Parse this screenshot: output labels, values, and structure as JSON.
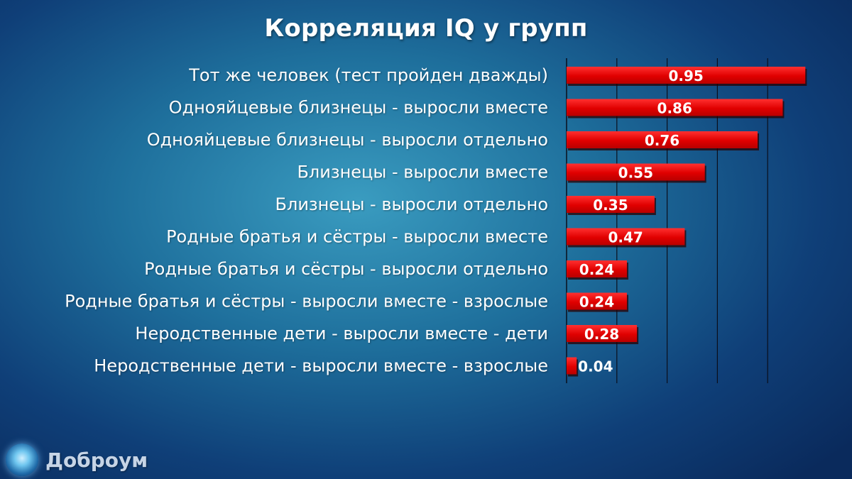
{
  "chart_data": {
    "type": "bar",
    "orientation": "horizontal",
    "title": "Корреляция IQ у групп",
    "categories": [
      "Тот же человек (тест пройден дважды)",
      "Однояйцевые близнецы - выросли вместе",
      "Однояйцевые близнецы - выросли отдельно",
      "Близнецы - выросли вместе",
      "Близнецы - выросли отдельно",
      "Родные братья и сёстры - выросли вместе",
      "Родные братья и сёстры - выросли отдельно",
      "Родные братья и сёстры - выросли вместе - взрослые",
      "Неродственные дети - выросли вместе - дети",
      "Неродственные дети - выросли вместе - взрослые"
    ],
    "values": [
      0.95,
      0.86,
      0.76,
      0.55,
      0.35,
      0.47,
      0.24,
      0.24,
      0.28,
      0.04
    ],
    "value_labels": [
      "0.95",
      "0.86",
      "0.76",
      "0.55",
      "0.35",
      "0.47",
      "0.24",
      "0.24",
      "0.28",
      "0.04"
    ],
    "xlim": [
      0,
      1
    ],
    "grid": true,
    "colors": {
      "bar": "#e20000",
      "bar_light": "#ff2a2a",
      "bar_shadow": "#5a0000"
    }
  },
  "brand": {
    "name": "Доброум",
    "icon": "brain-figure-icon"
  }
}
